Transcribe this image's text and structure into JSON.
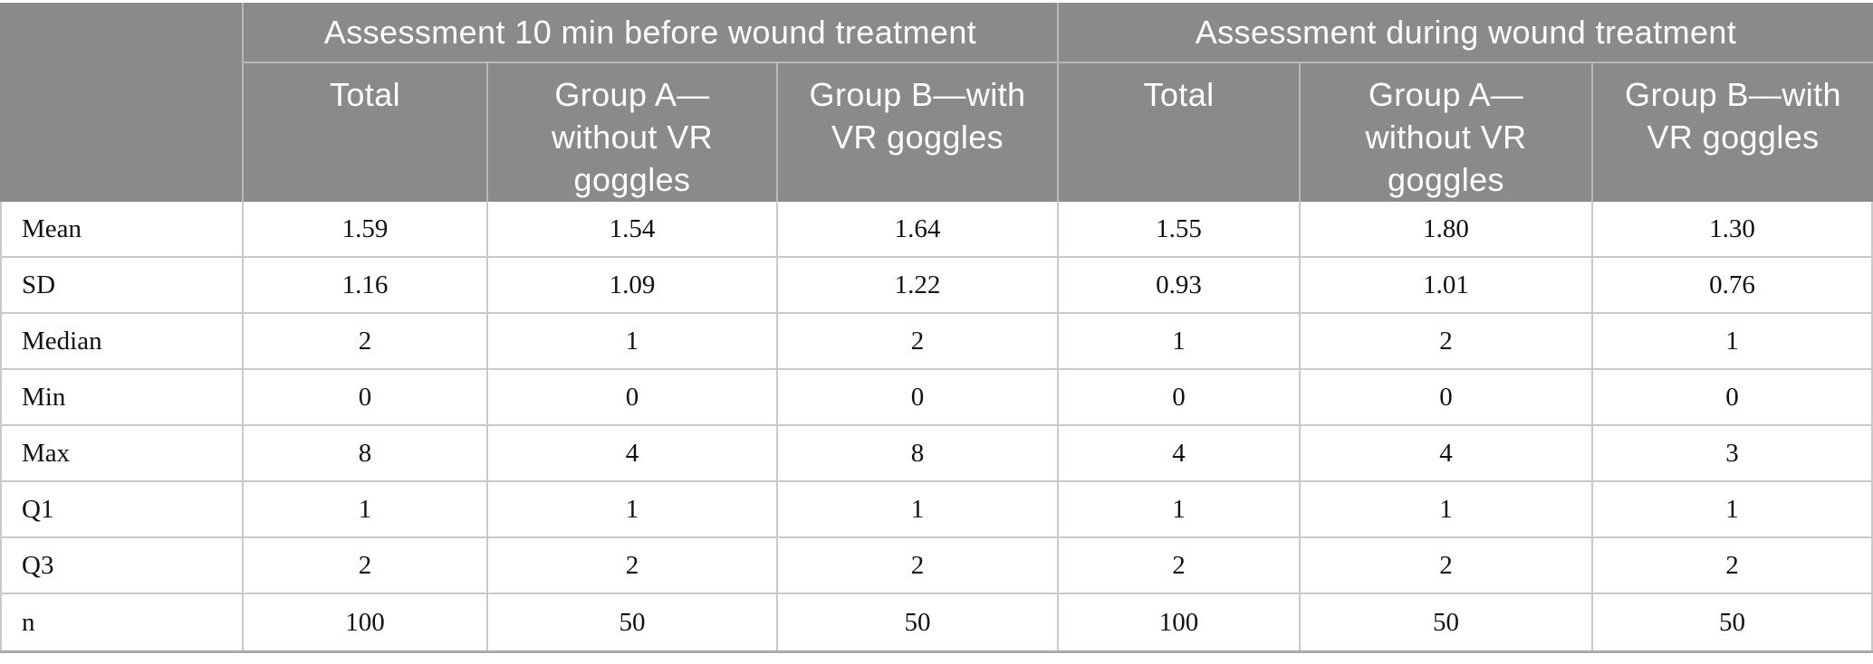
{
  "table": {
    "corner_label": "",
    "sections": [
      {
        "label": "Assessment 10 min before wound treatment"
      },
      {
        "label": "Assessment during wound treatment"
      }
    ],
    "columns": [
      "Total",
      "Group A—\nwithout VR\ngoggles",
      "Group B—with\nVR goggles",
      "Total",
      "Group A—\nwithout VR\ngoggles",
      "Group B—with\nVR goggles"
    ],
    "rows": [
      {
        "label": "Mean",
        "values": [
          "1.59",
          "1.54",
          "1.64",
          "1.55",
          "1.80",
          "1.30"
        ]
      },
      {
        "label": "SD",
        "values": [
          "1.16",
          "1.09",
          "1.22",
          "0.93",
          "1.01",
          "0.76"
        ]
      },
      {
        "label": "Median",
        "values": [
          "2",
          "1",
          "2",
          "1",
          "2",
          "1"
        ]
      },
      {
        "label": "Min",
        "values": [
          "0",
          "0",
          "0",
          "0",
          "0",
          "0"
        ]
      },
      {
        "label": "Max",
        "values": [
          "8",
          "4",
          "8",
          "4",
          "4",
          "3"
        ]
      },
      {
        "label": "Q1",
        "values": [
          "1",
          "1",
          "1",
          "1",
          "1",
          "1"
        ]
      },
      {
        "label": "Q3",
        "values": [
          "2",
          "2",
          "2",
          "2",
          "2",
          "2"
        ]
      },
      {
        "label": "n",
        "values": [
          "100",
          "50",
          "50",
          "100",
          "50",
          "50"
        ]
      }
    ],
    "colors": {
      "header_bg": "#8a8a8a",
      "header_text": "#ffffff",
      "header_divider": "#b9b9b9",
      "body_border": "#c9c9c9",
      "bottom_border": "#a9a9a9",
      "body_text": "#111111"
    }
  }
}
